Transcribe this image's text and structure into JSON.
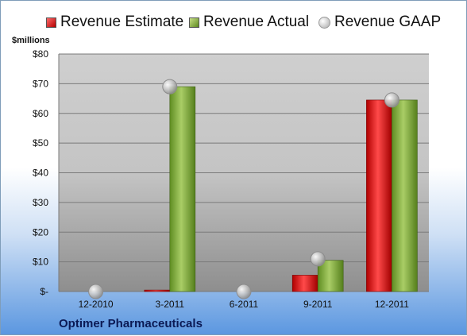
{
  "chart_data": {
    "type": "bar",
    "ylabel": "$millions",
    "categories": [
      "12-2010",
      "3-2011",
      "6-2011",
      "9-2011",
      "12-2011"
    ],
    "y_ticks": [
      "$-",
      "$10",
      "$20",
      "$30",
      "$40",
      "$50",
      "$60",
      "$70",
      "$80"
    ],
    "ylim": [
      0,
      80
    ],
    "grid": true,
    "legend_position": "top",
    "series": [
      {
        "name": "Revenue Estimate",
        "kind": "bar",
        "color": "#d42020",
        "values": [
          0,
          0.5,
          0,
          5.5,
          64.5
        ]
      },
      {
        "name": "Revenue Actual",
        "kind": "bar",
        "color": "#8bb34a",
        "values": [
          0,
          69,
          0,
          10.5,
          64.5
        ]
      },
      {
        "name": "Revenue GAAP",
        "kind": "marker",
        "color": "#c0c0c0",
        "values": [
          0,
          69,
          0,
          11,
          64.5
        ]
      }
    ]
  },
  "footer": {
    "company": "Optimer Pharmaceuticals"
  }
}
